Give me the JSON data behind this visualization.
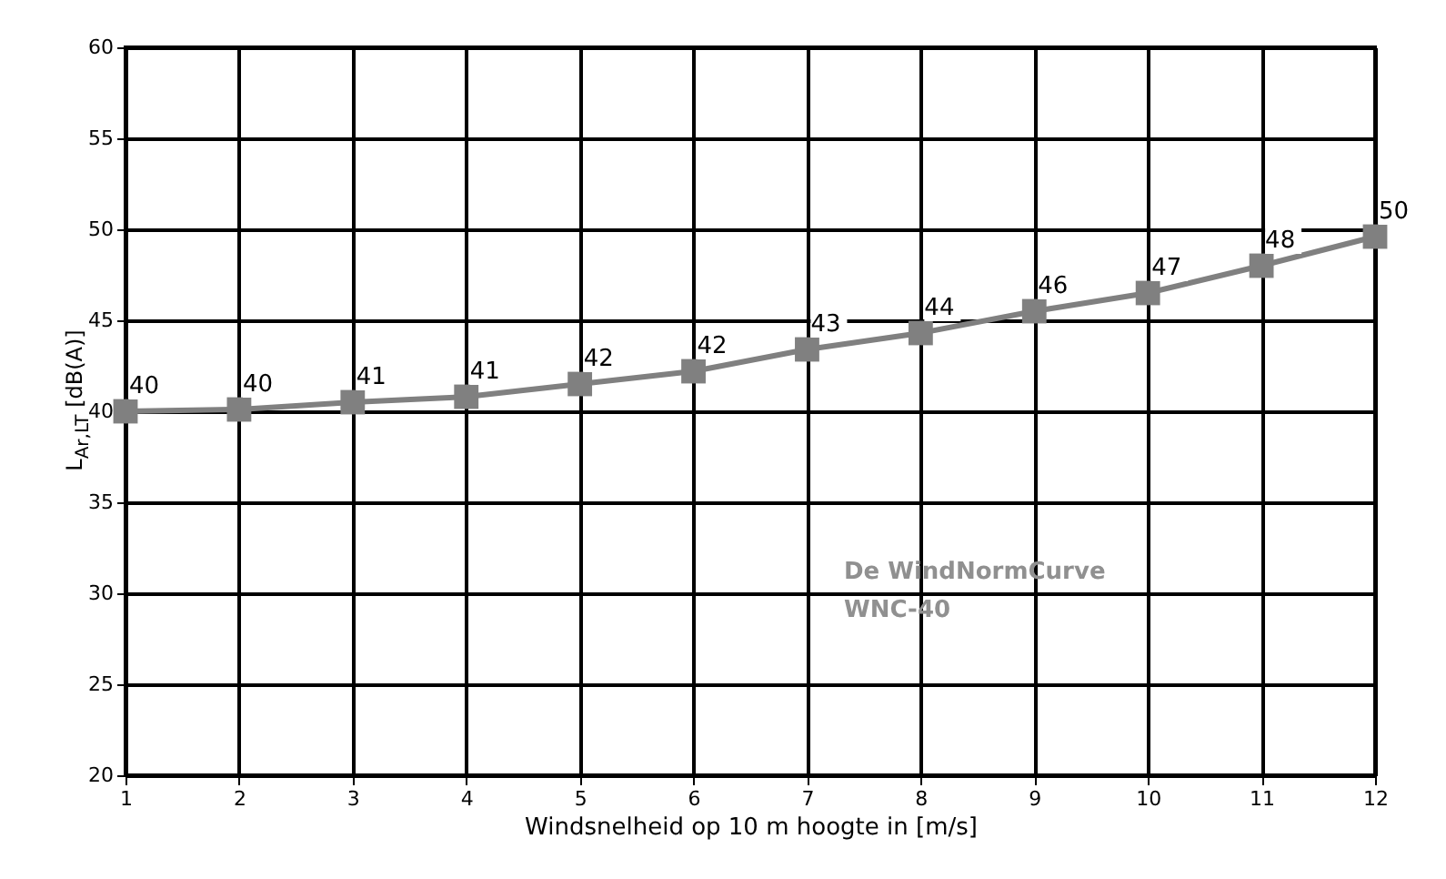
{
  "chart_data": {
    "type": "line",
    "xlabel": "Windsnelheid op 10 m hoogte in [m/s]",
    "ylabel": "L$_{Ar,LT}$ [dB(A)]",
    "x": [
      1,
      2,
      3,
      4,
      5,
      6,
      7,
      8,
      9,
      10,
      11,
      12
    ],
    "series": [
      {
        "color": "#808080",
        "values": [
          40.0,
          40.1,
          40.5,
          40.8,
          41.5,
          42.2,
          43.4,
          44.3,
          45.5,
          46.5,
          48.0,
          49.6
        ],
        "value_labels": [
          "40",
          "40",
          "41",
          "41",
          "42",
          "42",
          "43",
          "44",
          "46",
          "47",
          "48",
          "50"
        ]
      }
    ],
    "xlim": [
      1,
      12
    ],
    "xticks": [
      1,
      2,
      3,
      4,
      5,
      6,
      7,
      8,
      9,
      10,
      11,
      12
    ],
    "ylim": [
      20,
      60
    ],
    "yticks": [
      20,
      25,
      30,
      35,
      40,
      45,
      50,
      55,
      60
    ],
    "grid": true,
    "marker": "square",
    "line_style": "solid",
    "annotations": [
      "De WindNormCurve",
      "WNC-40"
    ]
  }
}
